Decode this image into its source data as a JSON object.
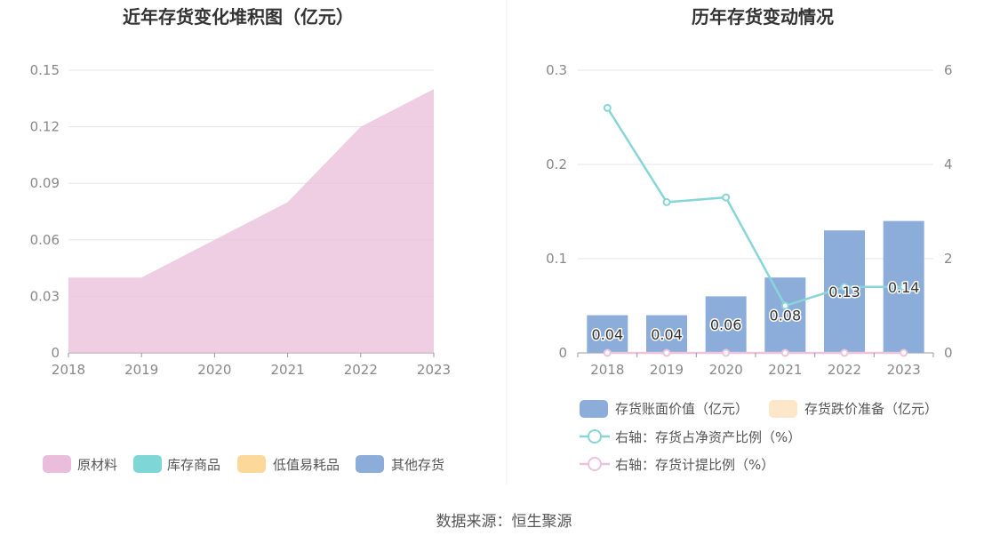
{
  "source": "数据来源：恒生聚源",
  "chart_data": [
    {
      "type": "area",
      "title": "近年存货变化堆积图（亿元）",
      "categories": [
        "2018",
        "2019",
        "2020",
        "2021",
        "2022",
        "2023"
      ],
      "y_ticks": [
        "0",
        "0.03",
        "0.06",
        "0.09",
        "0.12",
        "0.15"
      ],
      "ylim": [
        0,
        0.15
      ],
      "grid": true,
      "legend_position": "bottom",
      "series": [
        {
          "name": "原材料",
          "color": "#e9bddb",
          "values": [
            0.04,
            0.04,
            0.06,
            0.08,
            0.12,
            0.14
          ]
        },
        {
          "name": "库存商品",
          "color": "#7fd6d6",
          "values": [
            0,
            0,
            0,
            0,
            0,
            0
          ]
        },
        {
          "name": "低值易耗品",
          "color": "#fcd89b",
          "values": [
            0,
            0,
            0,
            0,
            0,
            0
          ]
        },
        {
          "name": "其他存货",
          "color": "#8cadd9",
          "values": [
            0,
            0,
            0,
            0,
            0,
            0
          ]
        }
      ]
    },
    {
      "type": "bar",
      "title": "历年存货变动情况",
      "categories": [
        "2018",
        "2019",
        "2020",
        "2021",
        "2022",
        "2023"
      ],
      "y_ticks": [
        "0",
        "0.1",
        "0.2",
        "0.3"
      ],
      "ylim": [
        0,
        0.3
      ],
      "y2_ticks": [
        "0",
        "2",
        "4",
        "6"
      ],
      "y2lim": [
        0,
        6
      ],
      "grid": true,
      "legend_position": "bottom",
      "series": [
        {
          "name": "存货账面价值（亿元）",
          "kind": "bar",
          "axis": "left",
          "color": "#8cadd9",
          "values": [
            0.04,
            0.04,
            0.06,
            0.08,
            0.13,
            0.14
          ],
          "labels": [
            "0.04",
            "0.04",
            "0.06",
            "0.08",
            "0.13",
            "0.14"
          ]
        },
        {
          "name": "存货跌价准备（亿元）",
          "kind": "bar",
          "axis": "left",
          "color": "#fde7c8",
          "values": [
            0,
            0,
            0,
            0,
            0,
            0
          ]
        },
        {
          "name": "右轴：存货占净资产比例（%）",
          "kind": "line",
          "axis": "right",
          "color": "#88d5d8",
          "values": [
            5.2,
            3.2,
            3.3,
            1.0,
            1.4,
            1.4
          ]
        },
        {
          "name": "右轴：存货计提比例（%）",
          "kind": "line",
          "axis": "right",
          "color": "#ecc3dc",
          "values": [
            0,
            0,
            0,
            0,
            0,
            0
          ]
        }
      ]
    }
  ]
}
